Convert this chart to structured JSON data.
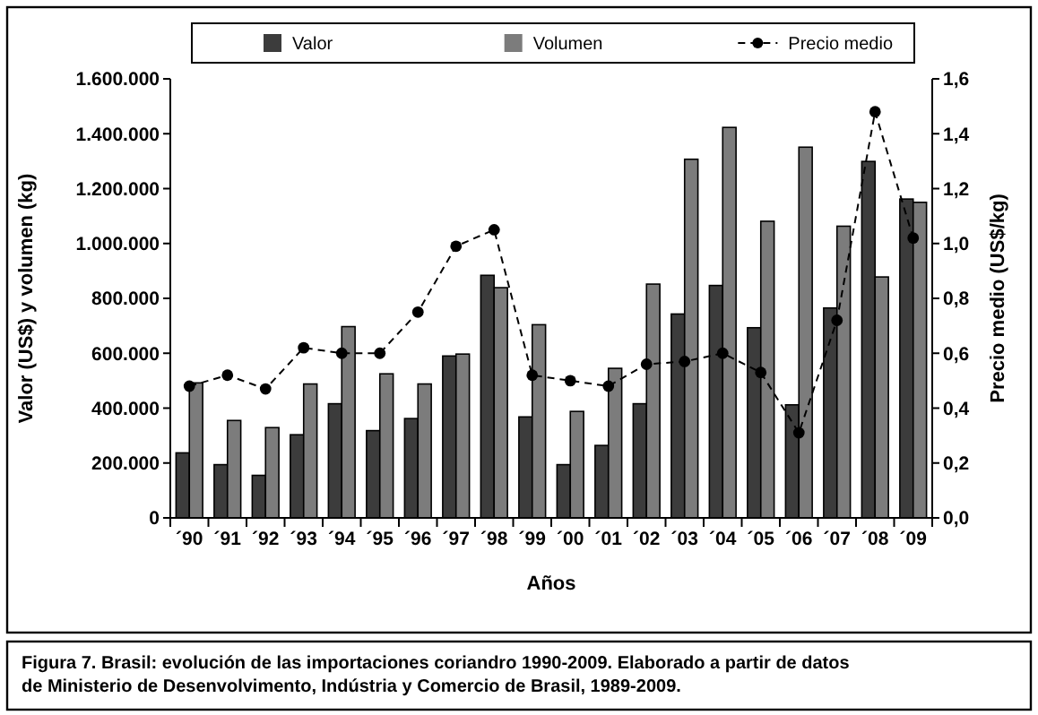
{
  "chart_data": {
    "type": "bar",
    "xlabel": "Años",
    "ylabel": "Valor (US$) y volumen (kg)",
    "y2label": "Precio medio (US$/kg)",
    "categories": [
      "´90",
      "´91",
      "´92",
      "´93",
      "´94",
      "´95",
      "´96",
      "´97",
      "´98",
      "´99",
      "´00",
      "´01",
      "´02",
      "´03",
      "´04",
      "´05",
      "´06",
      "´07",
      "´08",
      "´09"
    ],
    "series": [
      {
        "name": "Valor",
        "color": "#3c3c3c",
        "values": [
          237000,
          194000,
          155000,
          303000,
          416000,
          318000,
          362000,
          590000,
          884000,
          368000,
          194000,
          264000,
          416000,
          743000,
          847000,
          693000,
          412000,
          765000,
          1299000,
          1162000
        ]
      },
      {
        "name": "Volumen",
        "color": "#7c7c7c",
        "values": [
          492000,
          355000,
          329000,
          488000,
          697000,
          525000,
          488000,
          597000,
          839000,
          704000,
          388000,
          545000,
          852000,
          1307000,
          1423000,
          1081000,
          1351000,
          1063000,
          878000,
          1150000
        ]
      },
      {
        "name": "Precio medio",
        "type": "line",
        "axis": "y2",
        "color": "#000000",
        "line_style": "dashed",
        "marker": "circle",
        "values": [
          0.48,
          0.52,
          0.47,
          0.62,
          0.6,
          0.6,
          0.75,
          0.99,
          1.05,
          0.52,
          0.5,
          0.48,
          0.56,
          0.57,
          0.6,
          0.53,
          0.31,
          0.72,
          1.48,
          1.02
        ]
      }
    ],
    "ylim": [
      0,
      1600000
    ],
    "yticks": [
      {
        "value": 0,
        "label": "0"
      },
      {
        "value": 200000,
        "label": "200.000"
      },
      {
        "value": 400000,
        "label": "400.000"
      },
      {
        "value": 600000,
        "label": "600.000"
      },
      {
        "value": 800000,
        "label": "800.000"
      },
      {
        "value": 1000000,
        "label": "1.000.000"
      },
      {
        "value": 1200000,
        "label": "1.200.000"
      },
      {
        "value": 1400000,
        "label": "1.400.000"
      },
      {
        "value": 1600000,
        "label": "1.600.000"
      }
    ],
    "y2lim": [
      0,
      1.6
    ],
    "y2ticks": [
      {
        "value": 0,
        "label": "0,0"
      },
      {
        "value": 0.2,
        "label": "0,2"
      },
      {
        "value": 0.4,
        "label": "0,4"
      },
      {
        "value": 0.6,
        "label": "0,6"
      },
      {
        "value": 0.8,
        "label": "0,8"
      },
      {
        "value": 1,
        "label": "1,0"
      },
      {
        "value": 1.2,
        "label": "1,2"
      },
      {
        "value": 1.4,
        "label": "1,4"
      },
      {
        "value": 1.6,
        "label": "1,6"
      }
    ],
    "grid": false,
    "legend": "top",
    "annotations": [
      "Figura 7.  Brasil: evolución de las importaciones coriandro 1990-2009. Elaborado a partir de datos de Ministerio de Desenvolvimento, Indústria y Comercio de Brasil, 1989-2009."
    ]
  }
}
